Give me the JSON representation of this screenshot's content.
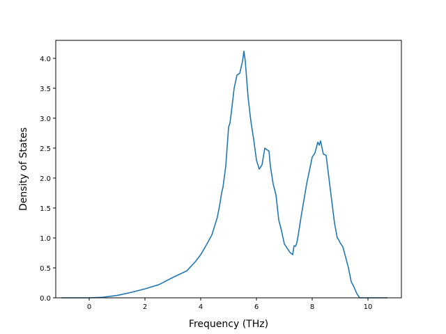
{
  "chart_data": {
    "type": "line",
    "title": "",
    "xlabel": "Frequency (THz)",
    "ylabel": "Density of States",
    "xlim": [
      -1.2,
      11.2
    ],
    "ylim": [
      0,
      4.3
    ],
    "xticks": [
      0,
      2,
      4,
      6,
      8,
      10
    ],
    "yticks": [
      0.0,
      0.5,
      1.0,
      1.5,
      2.0,
      2.5,
      3.0,
      3.5,
      4.0
    ],
    "xtick_labels": [
      "0",
      "2",
      "4",
      "6",
      "8",
      "10"
    ],
    "ytick_labels": [
      "0.0",
      "0.5",
      "1.0",
      "1.5",
      "2.0",
      "2.5",
      "3.0",
      "3.5",
      "4.0"
    ],
    "grid": false,
    "legend": "none",
    "series": [
      {
        "color": "#1f77b4",
        "x": [
          -1.0,
          0.0,
          0.5,
          1.0,
          1.5,
          2.0,
          2.5,
          3.0,
          3.5,
          3.8,
          4.0,
          4.2,
          4.4,
          4.6,
          4.7,
          4.75,
          4.8,
          4.9,
          5.0,
          5.05,
          5.1,
          5.2,
          5.3,
          5.4,
          5.5,
          5.55,
          5.6,
          5.7,
          5.8,
          5.9,
          6.0,
          6.1,
          6.2,
          6.3,
          6.35,
          6.45,
          6.5,
          6.6,
          6.7,
          6.8,
          6.9,
          7.0,
          7.2,
          7.3,
          7.35,
          7.4,
          7.45,
          7.5,
          7.6,
          7.8,
          8.0,
          8.1,
          8.2,
          8.25,
          8.3,
          8.4,
          8.5,
          8.6,
          8.8,
          8.9,
          8.95,
          9.0,
          9.1,
          9.2,
          9.3,
          9.4,
          9.5,
          9.6,
          9.7,
          9.8,
          10.0,
          10.7
        ],
        "values": [
          0.0,
          0.0,
          0.01,
          0.04,
          0.09,
          0.15,
          0.22,
          0.34,
          0.45,
          0.6,
          0.72,
          0.88,
          1.05,
          1.35,
          1.6,
          1.75,
          1.85,
          2.2,
          2.85,
          2.92,
          3.1,
          3.5,
          3.72,
          3.75,
          3.95,
          4.12,
          3.95,
          3.35,
          2.95,
          2.65,
          2.3,
          2.15,
          2.22,
          2.5,
          2.48,
          2.45,
          2.2,
          1.9,
          1.72,
          1.3,
          1.12,
          0.9,
          0.76,
          0.72,
          0.87,
          0.86,
          0.92,
          1.05,
          1.35,
          1.9,
          2.35,
          2.42,
          2.6,
          2.55,
          2.62,
          2.4,
          2.38,
          2.0,
          1.25,
          1.0,
          0.97,
          0.92,
          0.85,
          0.68,
          0.5,
          0.27,
          0.18,
          0.07,
          0.0,
          0.0,
          0.0,
          0.0
        ]
      }
    ]
  }
}
